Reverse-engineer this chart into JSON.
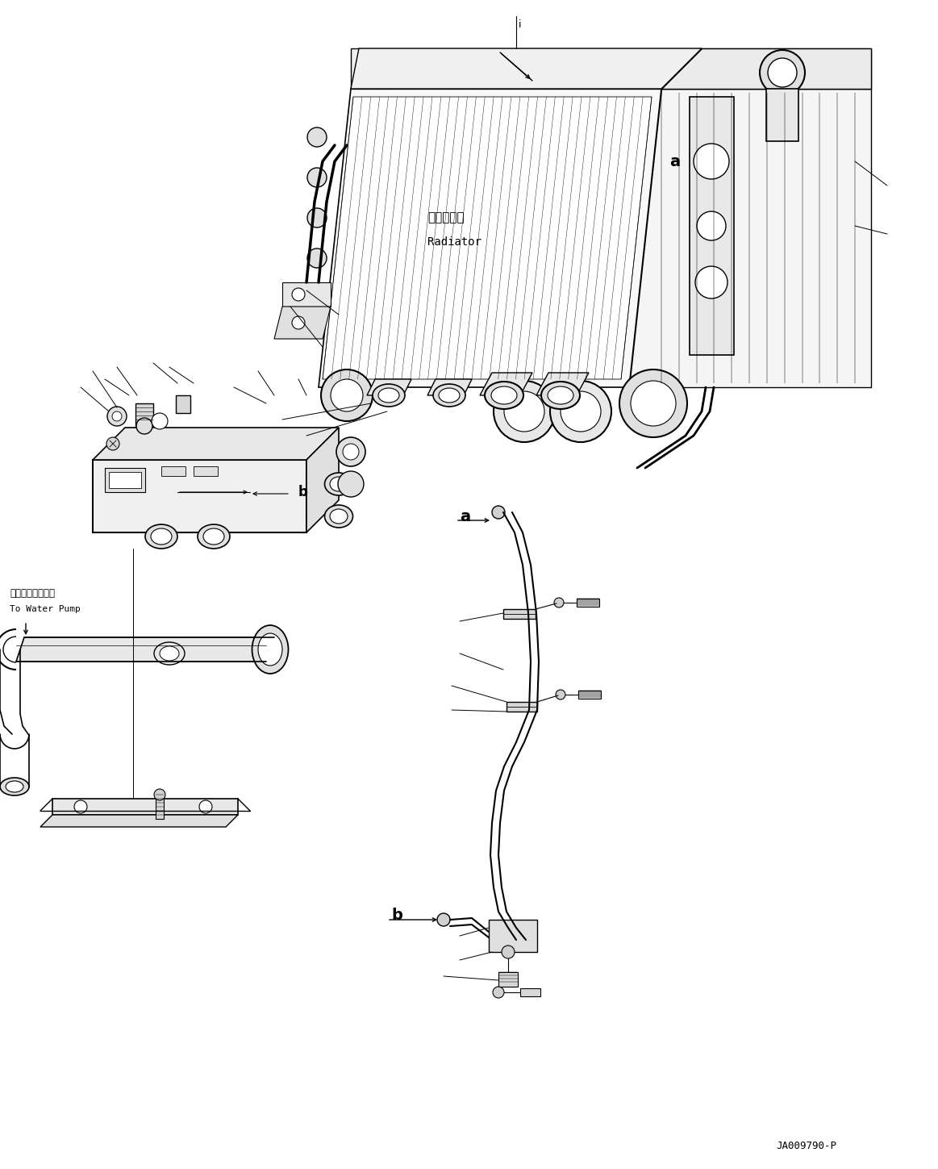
{
  "background_color": "#ffffff",
  "page_width": 11.63,
  "page_height": 14.49,
  "dpi": 100,
  "watermark_text": "JA009790-P",
  "radiator_label_jp": "ラジエータ",
  "radiator_label_en": "Radiator",
  "water_pump_jp": "ウォータポンプへ",
  "water_pump_en": "To Water Pump",
  "label_a1": "a",
  "label_a2": "a",
  "label_b1": "b",
  "label_b2": "b",
  "label_i": "i"
}
